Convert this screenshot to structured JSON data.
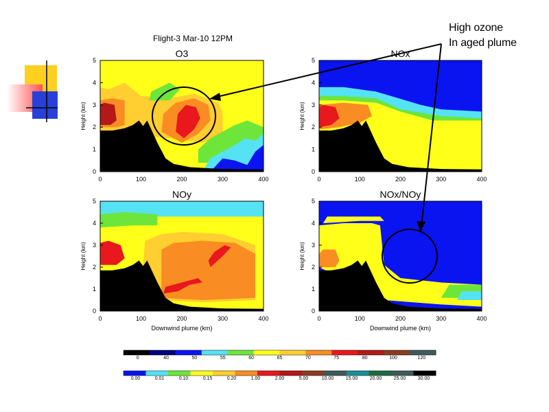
{
  "figure": {
    "title": "Flight-3 Mar-10 12PM",
    "annotation_lines": [
      "High ozone",
      "In aged plume"
    ]
  },
  "colors": {
    "black": "#000000",
    "navy": "#00007f",
    "blue": "#0a14f0",
    "cyan": "#55e2f2",
    "green": "#6ee53a",
    "yellow": "#ffff1a",
    "lightorange": "#ffce30",
    "orange": "#f98c22",
    "red": "#e8181c",
    "darkred": "#b41818",
    "brown": "#8a3c22",
    "teal": "#1a8e96",
    "darkgreen": "#1f6b40",
    "gray": "#405a5a"
  },
  "chart_data": [
    {
      "type": "heatmap",
      "title": "O3",
      "xlabel": "",
      "ylabel": "Height (km)",
      "xlim": [
        0,
        400
      ],
      "ylim": [
        0,
        5
      ],
      "xticks": [
        0,
        100,
        200,
        300,
        400
      ],
      "yticks": [
        0,
        1,
        2,
        3,
        4,
        5
      ],
      "description_of_field": "Mostly yellow (~60-65 ppb); ozone maximum (red/orange, 70-80 ppb) near 150-280 km at 1.5-3 km; green/cyan/blue near surface beyond 250 km; black terrain below ~2 km for x<120 km"
    },
    {
      "type": "heatmap",
      "title": "NOx",
      "xlabel": "",
      "ylabel": "Height (km)",
      "xlim": [
        0,
        400
      ],
      "ylim": [
        0,
        5
      ],
      "xticks": [
        0,
        100,
        200,
        300,
        400
      ],
      "yticks": [
        0,
        1,
        2,
        3,
        4,
        5
      ]
    },
    {
      "type": "heatmap",
      "title": "NOy",
      "xlabel": "Downwind plume (km)",
      "ylabel": "Height (km)",
      "xlim": [
        0,
        400
      ],
      "ylim": [
        0,
        5
      ],
      "xticks": [
        0,
        100,
        200,
        300,
        400
      ],
      "yticks": [
        0,
        1,
        2,
        3,
        4,
        5
      ]
    },
    {
      "type": "heatmap",
      "title": "NOx/NOy",
      "xlabel": "Downwind plume (km)",
      "ylabel": "Height (km)",
      "xlim": [
        0,
        400
      ],
      "ylim": [
        0,
        5
      ],
      "xticks": [
        0,
        100,
        200,
        300,
        400
      ],
      "yticks": [
        0,
        1,
        2,
        3,
        4,
        5
      ]
    }
  ],
  "colorbars": [
    {
      "labels": [
        "0",
        "40",
        "50",
        "55",
        "60",
        "65",
        "70",
        "75",
        "80",
        "100",
        "120"
      ],
      "colors": [
        "black",
        "navy",
        "blue",
        "cyan",
        "green",
        "yellow",
        "lightorange",
        "orange",
        "red",
        "darkred",
        "brown",
        "gray"
      ]
    },
    {
      "labels": [
        "0.00",
        "0.01",
        "0.10",
        "0.15",
        "0.20",
        "1.00",
        "2.00",
        "5.00",
        "10.00",
        "15.00",
        "20.00",
        "25.00",
        "30.00"
      ],
      "colors": [
        "blue",
        "cyan",
        "green",
        "yellow",
        "lightorange",
        "orange",
        "red",
        "darkred",
        "brown",
        "gray",
        "teal",
        "darkgreen",
        "gray",
        "black"
      ]
    }
  ]
}
